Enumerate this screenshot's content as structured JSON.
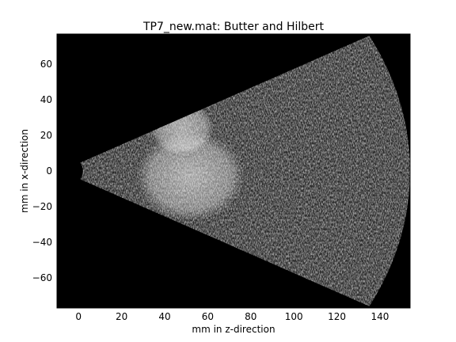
{
  "chart_data": {
    "type": "heatmap",
    "title": "TP7_new.mat: Butter and Hilbert",
    "xlabel": "mm in z-direction",
    "ylabel": "mm in x-direction",
    "xlim": [
      -10,
      154
    ],
    "ylim": [
      -77,
      77
    ],
    "xticks": [
      0,
      20,
      40,
      60,
      80,
      100,
      120,
      140
    ],
    "yticks": [
      -60,
      -40,
      -20,
      0,
      20,
      40,
      60
    ],
    "xtick_labels": [
      "0",
      "20",
      "40",
      "60",
      "80",
      "100",
      "120",
      "140"
    ],
    "ytick_labels": [
      "−60",
      "−40",
      "−20",
      "0",
      "20",
      "40",
      "60"
    ],
    "grid": false,
    "colormap": "gray",
    "background": "#000000",
    "sector": {
      "apex": [
        -8,
        0
      ],
      "inner_radius_mm": 10,
      "outer_radius_mm": 162,
      "half_angle_deg": 28
    },
    "bright_regions": [
      {
        "label": "",
        "center": [
          52,
          -3
        ],
        "radius": 25
      },
      {
        "label": "",
        "center": [
          48,
          24
        ],
        "radius": 15
      }
    ]
  }
}
